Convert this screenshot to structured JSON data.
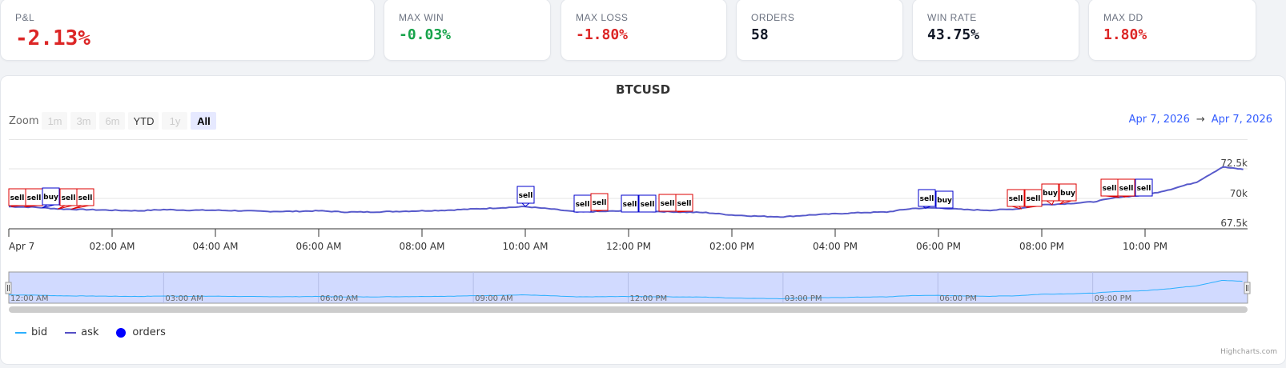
{
  "stats": [
    {
      "label": "P&L",
      "value": "-2.13%",
      "tone": "red"
    },
    {
      "label": "MAX WIN",
      "value": "-0.03%",
      "tone": "green"
    },
    {
      "label": "MAX LOSS",
      "value": "-1.80%",
      "tone": "red"
    },
    {
      "label": "ORDERS",
      "value": "58",
      "tone": "neutral"
    },
    {
      "label": "WIN RATE",
      "value": "43.75%",
      "tone": "neutral"
    },
    {
      "label": "MAX DD",
      "value": "1.80%",
      "tone": "red"
    }
  ],
  "chart": {
    "title": "BTCUSD",
    "zoom_label": "Zoom",
    "zoom_buttons": [
      {
        "label": "1m",
        "state": "disabled"
      },
      {
        "label": "3m",
        "state": "disabled"
      },
      {
        "label": "6m",
        "state": "disabled"
      },
      {
        "label": "YTD",
        "state": "enabled"
      },
      {
        "label": "1y",
        "state": "disabled"
      },
      {
        "label": "All",
        "state": "active"
      }
    ],
    "range_from": "Apr 7, 2026",
    "range_arrow": "→",
    "range_to": "Apr 7, 2026",
    "legend": [
      {
        "label": "bid",
        "color": "#2caffe",
        "symbol": "line"
      },
      {
        "label": "ask",
        "color": "#544fc5",
        "symbol": "line"
      },
      {
        "label": "orders",
        "color": "#0000ff",
        "symbol": "dot"
      }
    ],
    "credits": "Highcharts.com",
    "colors": {
      "buy_flag": "#0000cc",
      "sell_flag": "#dd0000",
      "ask_line": "#544fc5",
      "bid_line": "#2caffe",
      "navigator_mask": "#ccd6ff"
    }
  },
  "chart_data": {
    "type": "line",
    "title": "BTCUSD",
    "xlabel": "",
    "ylabel": "",
    "x_ticks": [
      "Apr 7",
      "02:00 AM",
      "04:00 AM",
      "06:00 AM",
      "08:00 AM",
      "10:00 AM",
      "12:00 PM",
      "02:00 PM",
      "04:00 PM",
      "06:00 PM",
      "08:00 PM",
      "10:00 PM"
    ],
    "y_ticks": [
      "67.5k",
      "70k",
      "72.5k"
    ],
    "ylim": [
      67500,
      72500
    ],
    "navigator_ticks": [
      "12:00 AM",
      "03:00 AM",
      "06:00 AM",
      "09:00 AM",
      "12:00 PM",
      "03:00 PM",
      "06:00 PM",
      "09:00 PM"
    ],
    "x_hours": [
      0,
      0.5,
      1,
      1.5,
      2,
      2.5,
      3,
      3.5,
      4,
      4.5,
      5,
      5.5,
      6,
      6.5,
      7,
      7.5,
      8,
      8.5,
      9,
      9.5,
      10,
      10.5,
      11,
      11.5,
      12,
      12.5,
      13,
      13.5,
      14,
      14.5,
      15,
      15.5,
      16,
      16.5,
      17,
      17.5,
      18,
      18.5,
      19,
      19.5,
      20,
      20.5,
      21,
      21.5,
      22,
      22.5,
      23,
      23.5,
      23.9
    ],
    "series": [
      {
        "name": "ask",
        "values": [
          69150,
          69100,
          68950,
          68900,
          68850,
          68800,
          68900,
          68850,
          68850,
          68800,
          68750,
          68750,
          68800,
          68700,
          68700,
          68750,
          68800,
          68850,
          68950,
          69050,
          69150,
          68950,
          68700,
          68750,
          68800,
          68750,
          68700,
          68650,
          68450,
          68350,
          68300,
          68450,
          68550,
          68650,
          68700,
          69000,
          69050,
          68900,
          68850,
          68950,
          69300,
          69400,
          69550,
          69950,
          70100,
          70600,
          71200,
          72450,
          72250
        ]
      },
      {
        "name": "bid",
        "values": [
          69140,
          69090,
          68940,
          68890,
          68840,
          68790,
          68890,
          68840,
          68840,
          68790,
          68740,
          68740,
          68790,
          68690,
          68690,
          68740,
          68790,
          68840,
          68940,
          69040,
          69140,
          68940,
          68690,
          68740,
          68790,
          68740,
          68690,
          68640,
          68440,
          68340,
          68290,
          68440,
          68540,
          68640,
          68690,
          68990,
          69040,
          68890,
          68840,
          68940,
          69290,
          69390,
          69540,
          69940,
          70090,
          70590,
          71190,
          72440,
          72240
        ]
      }
    ],
    "orders": [
      {
        "time": "00:00",
        "side": "sell"
      },
      {
        "time": "00:20",
        "side": "sell"
      },
      {
        "time": "00:45",
        "side": "buy"
      },
      {
        "time": "01:00",
        "side": "sell"
      },
      {
        "time": "01:15",
        "side": "sell"
      },
      {
        "time": "10:00",
        "side": "sell"
      },
      {
        "time": "11:08",
        "side": "sell"
      },
      {
        "time": "11:25",
        "side": "sell"
      },
      {
        "time": "12:05",
        "side": "sell"
      },
      {
        "time": "12:20",
        "side": "sell"
      },
      {
        "time": "12:50",
        "side": "sell"
      },
      {
        "time": "13:00",
        "side": "sell"
      },
      {
        "time": "17:45",
        "side": "sell"
      },
      {
        "time": "18:05",
        "side": "buy"
      },
      {
        "time": "19:40",
        "side": "sell"
      },
      {
        "time": "19:45",
        "side": "sell"
      },
      {
        "time": "20:20",
        "side": "buy"
      },
      {
        "time": "20:30",
        "side": "buy"
      },
      {
        "time": "21:40",
        "side": "sell"
      },
      {
        "time": "21:45",
        "side": "sell"
      },
      {
        "time": "21:55",
        "side": "sell"
      }
    ]
  }
}
